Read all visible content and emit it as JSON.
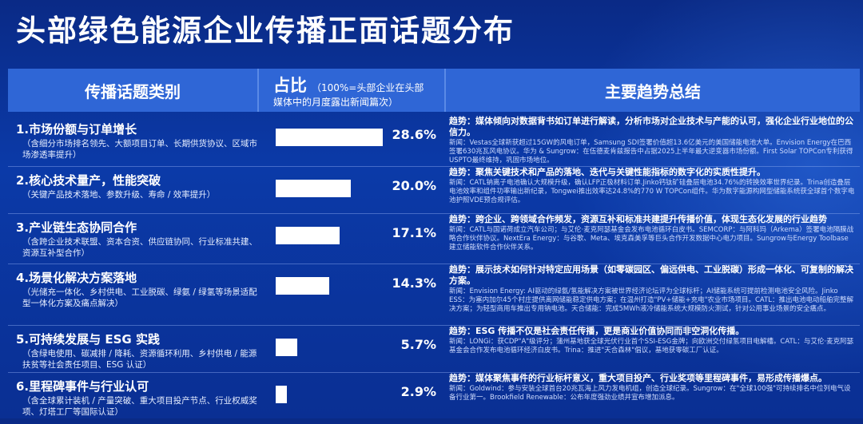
{
  "title": "头部绿色能源企业传播正面话题分布",
  "header": {
    "col1": "传播话题类别",
    "col2_big": "占比",
    "col2_small_a": "（100%=头部企业在头部",
    "col2_small_b": "媒体中的月度露出新闻篇次）",
    "col3": "主要趋势总结"
  },
  "colors": {
    "background": "#0b3aa8",
    "header": "#2f66d6",
    "bar": "#ffffff"
  },
  "chart_data": {
    "type": "bar",
    "categories": [
      "1.市场份额与订单增长",
      "2.核心技术量产，性能突破",
      "3.产业链生态协同合作",
      "4.场景化解决方案落地",
      "5.可持续发展与 ESG 实践",
      "6.里程碑事件与行业认可"
    ],
    "values": [
      28.6,
      20.0,
      17.1,
      14.3,
      5.7,
      2.9
    ],
    "value_labels": [
      "28.6%",
      "20.0%",
      "17.1%",
      "14.3%",
      "5.7%",
      "2.9%"
    ],
    "ylabel": "占比",
    "xlim": [
      0,
      28.6
    ]
  },
  "rows": [
    {
      "name": "1.市场份额与订单增长",
      "sub": "（含细分市场排名领先、大额项目订单、长期供货协议、区域市场渗透率提升）",
      "pct": "28.6%",
      "trend_lead": "趋势：媒体倾向对数据背书如订单进行解读，分析市场对企业技术与产能的认可，强化企业行业地位的公信力。",
      "trend_detail": "新闻：Vestas全球新获超过15GW的风电订单，Samsung SDI签署价值超13.6亿美元的美国储能电池大单。Envision Energy在巴西签署630兆瓦风电协议。华为 & Sungrow：在伍德麦肯兹报告中占据2025上半年最大逆变器市场份额。First Solar TOPCon专利获得USPTO最终维持，巩固市场地位。"
    },
    {
      "name": "2.核心技术量产，性能突破",
      "sub": "（关键产品技术落地、参数升级、寿命 / 效率提升）",
      "pct": "20.0%",
      "trend_lead": "趋势：聚焦关键技术和产品的落地、迭代与关键性能指标的数字化的实质性提升。",
      "trend_detail": "新闻：CATL钠离子电池确认大规模升级，确认LFP正极材料订单.Jinko钙钛矿硅叠层电池34.76%的转换效率世界纪录。Trina创造叠层电池效率和组件功率输出新纪录，Tongwei推出效率达24.8%的770 W TOPCon组件。华为数字能源构网型储能系统获全球首个数字电池护照VDE预合规评估。"
    },
    {
      "name": "3.产业链生态协同合作",
      "sub": "（含跨企业技术联盟、资本合资、供应链协同、行业标准共建、资源互补型合作）",
      "pct": "17.1%",
      "trend_lead": "趋势：跨企业、跨领域合作频发，资源互补和标准共建提升传播价值，体现生态化发展的行业趋势",
      "trend_detail": "新闻：CATL与国诺荷成立汽车公司；与艾伦·麦克阿瑟基金会发布电池循环白皮书。SEMCORP：与阿科玛（Arkema）签署电池隔膜战略合作伙伴协议。NextEra Energy：与谷歌、Meta、埃克森美孚等巨头合作开发数据中心电力项目。Sungrow与Energy Toolbase建立储能软件合作伙伴关系。"
    },
    {
      "name": "4.场景化解决方案落地",
      "sub": "（光储充一体化、乡村供电、工业脱碳、绿氨 / 绿氢等场景适配型一体化方案及痛点解决）",
      "pct": "14.3%",
      "trend_lead": "趋势：展示技术如何针对特定应用场景（如零碳园区、偏远供电、工业脱碳）形成一体化、可复制的解决方案。",
      "trend_detail": "新闻：Envision Energy: AI驱动的绿氨/氢能解决方案被世界经济论坛评为全球标杆；AI储能系统可提前检测电池安全风险。Jinko ESS：为塞内加尔45个村庄提供离网储能稳定供电方案；在温州打造\"PV+储能+充电\"农业市场项目。CATL：推出电池电动船舶完整解决方案；为轻型商用车推出专用钠电池。天合储能：完成5MWh液冷储能系统大规模防火测试，针对公用事业场景的安全痛点。"
    },
    {
      "name": "5.可持续发展与 ESG 实践",
      "sub": "（含绿电使用、碳减排 / 降耗、资源循环利用、乡村供电 / 能源扶贫等社会责任项目、ESG 认证）",
      "pct": "5.7%",
      "trend_lead": "趋势：ESG 传播不仅是社会责任传播，更是商业价值协同而非空洞化传播。",
      "trend_detail": "新闻：LONGi：获CDP\"A\"级评分；蒲州基地获全球光伏行业首个SSI-ESG金牌；向欧洲交付绿氢项目电解槽。CATL：与艾伦·麦克阿瑟基金会合作发布电池循环经济白皮书。Trina：推进\"天合森林\"倡议，基地获零碳工厂认证。"
    },
    {
      "name": "6.里程碑事件与行业认可",
      "sub": "（含全球累计装机 / 产量突破、重大项目投产节点、行业权威奖项、灯塔工厂等国际认证）",
      "pct": "2.9%",
      "trend_lead": "趋势：媒体聚焦事件的行业标杆意义，重大项目投产、行业奖项等里程碑事件，易形成传播爆点。",
      "trend_detail": "新闻：Goldwind：参与安装全球首台20兆瓦海上风力发电机组，创造全球纪录。Sungrow：在\"全球100强\"可持续排名中位列电气设备行业第一。Brookfield Renewable：公布年度强劲业绩并宣布增加派息。"
    }
  ]
}
